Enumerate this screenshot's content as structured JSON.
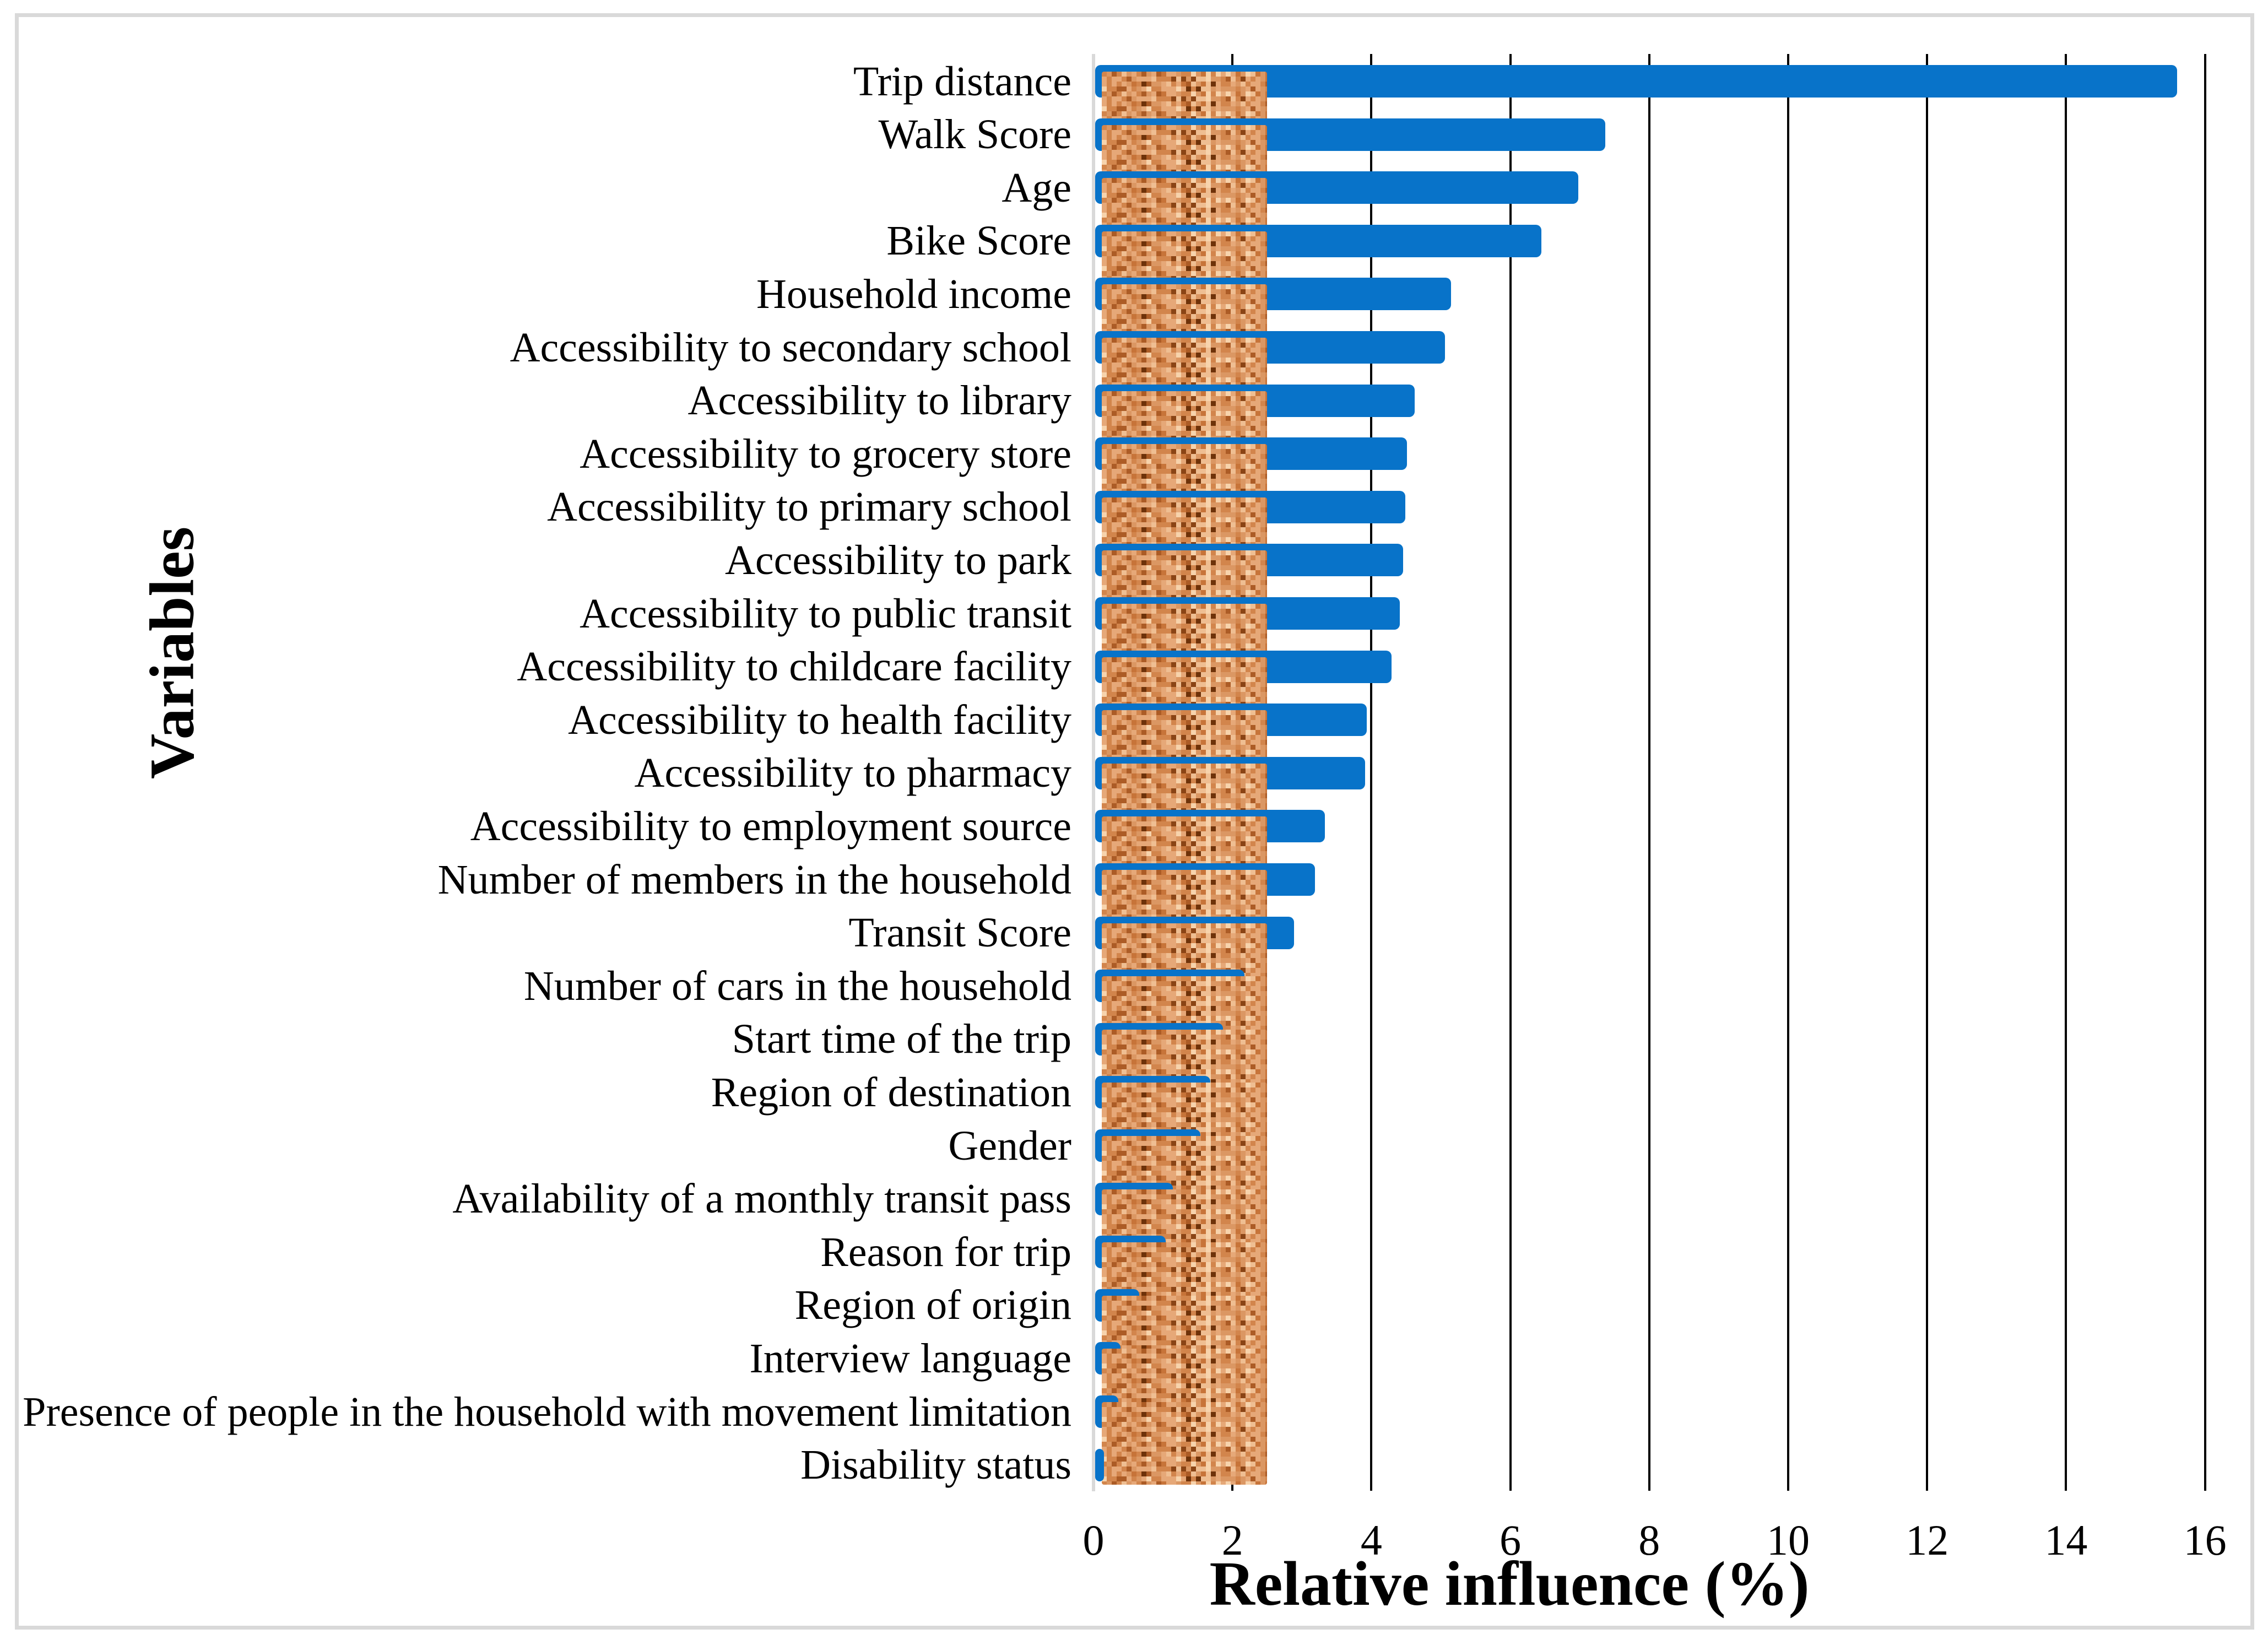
{
  "chart_data": {
    "type": "bar",
    "orientation": "horizontal",
    "title": "",
    "xlabel": "Relative influence (%)",
    "ylabel": "Variables",
    "xlim": [
      0,
      16
    ],
    "x_ticks": [
      0,
      2,
      4,
      6,
      8,
      10,
      12,
      14,
      16
    ],
    "grid": true,
    "legend": "none",
    "categories": [
      "Trip distance",
      "Walk Score",
      "Age",
      "Bike Score",
      "Household income",
      "Accessibility to secondary school",
      "Accessibility to library",
      "Accessibility to grocery store",
      "Accessibility to primary school",
      "Accessibility to park",
      "Accessibility to public transit",
      "Accessibility to childcare facility",
      "Accessibility to health facility",
      "Accessibility to pharmacy",
      "Accessibility to employment source",
      "Number of members in the household",
      "Transit Score",
      "Number of cars in the household",
      "Start time of the trip",
      "Region of destination",
      "Gender",
      "Availability of a monthly transit pass",
      "Reason for trip",
      "Region of origin",
      "Interview language",
      "Presence of people in the household with movement limitation",
      "Disability status"
    ],
    "values": [
      15.6,
      7.37,
      6.98,
      6.45,
      5.15,
      5.06,
      4.62,
      4.51,
      4.49,
      4.46,
      4.41,
      4.29,
      3.93,
      3.91,
      3.33,
      3.19,
      2.89,
      2.17,
      1.86,
      1.68,
      1.54,
      1.14,
      1.04,
      0.66,
      0.39,
      0.36,
      0.14
    ]
  },
  "colors": {
    "bar_border": "#0873C9",
    "gridline": "#000000",
    "axis_line": "#d9d9d9",
    "figure_border": "#d9d9d9",
    "text": "#000000",
    "texture_palette": [
      "#F7D3AC",
      "#EFBE92",
      "#E6A878",
      "#DB9763",
      "#D2854C",
      "#C77439",
      "#AC5C26",
      "#8A4415",
      "#6E3209"
    ],
    "texture_weights": [
      2,
      3,
      5,
      6,
      5,
      3,
      2,
      1.5,
      0.8
    ]
  }
}
